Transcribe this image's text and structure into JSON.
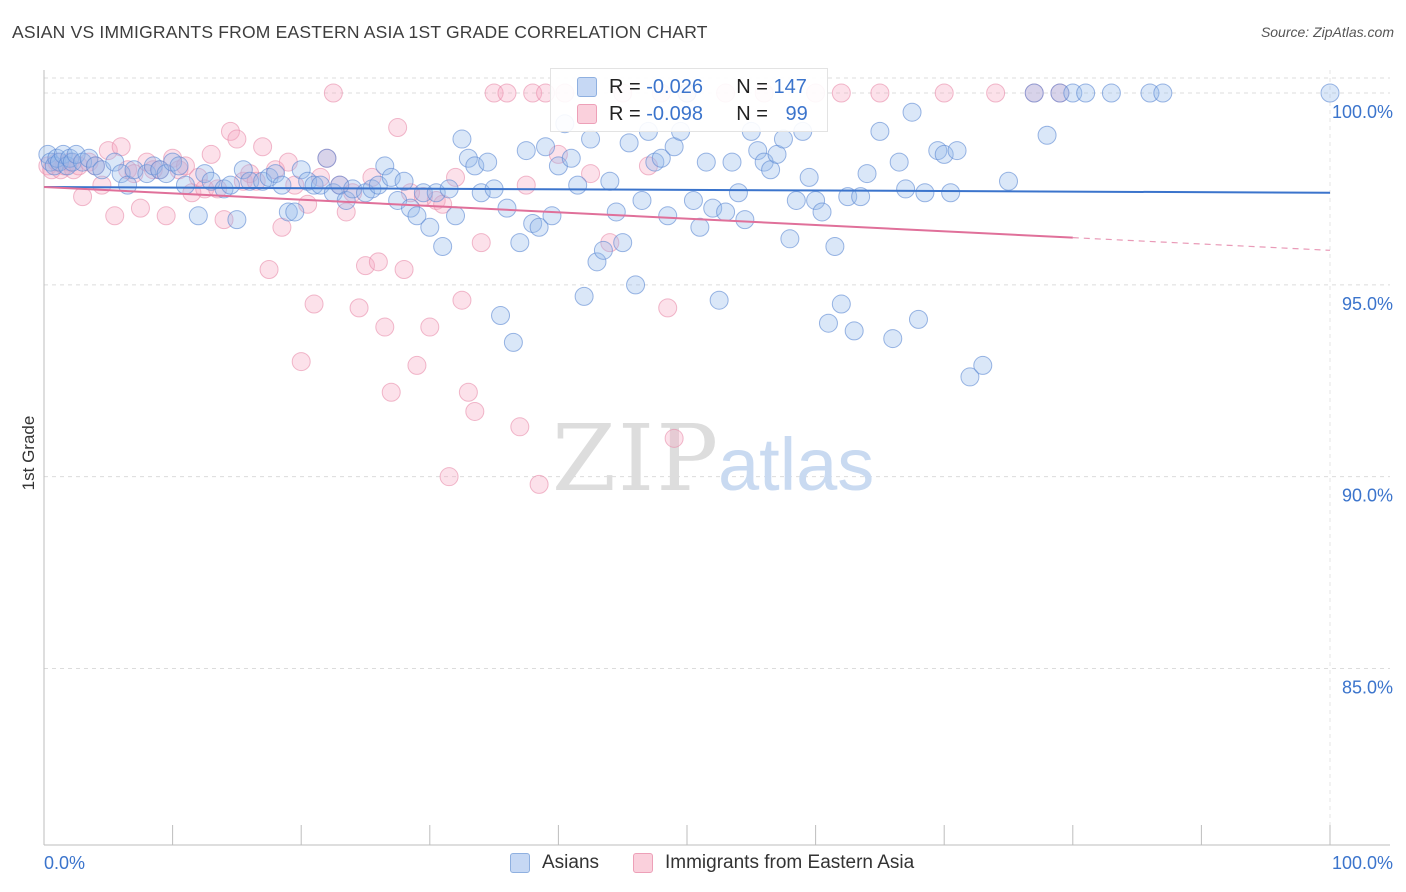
{
  "header": {
    "title": "ASIAN VS IMMIGRANTS FROM EASTERN ASIA 1ST GRADE CORRELATION CHART",
    "source": "Source: ZipAtlas.com"
  },
  "watermark": {
    "zip": "ZIP",
    "atlas": "atlas"
  },
  "legend": {
    "rows": [
      {
        "r_label": "R = ",
        "r_value": "-0.026",
        "n_label": "N = ",
        "n_value": "147",
        "color": "#a8c4ee"
      },
      {
        "r_label": "R = ",
        "r_value": "-0.098",
        "n_label": "N = ",
        "n_value": "99",
        "color": "#f5b8c9"
      }
    ]
  },
  "bottom_legend": [
    {
      "label": "Asians",
      "color": "#a8c4ee"
    },
    {
      "label": "Immigrants from Eastern Asia",
      "color": "#f5b8c9"
    }
  ],
  "chart_data": {
    "type": "scatter",
    "title": "ASIAN VS IMMIGRANTS FROM EASTERN ASIA 1ST GRADE CORRELATION CHART",
    "xlabel": "",
    "ylabel": "1st Grade",
    "xlim": [
      0,
      100
    ],
    "ylim": [
      80.4,
      100.6
    ],
    "x_tick_labels": [
      "0.0%",
      "100.0%"
    ],
    "y_ticks": [
      100,
      95,
      90,
      85
    ],
    "y_tick_labels": [
      "100.0%",
      "95.0%",
      "90.0%",
      "85.0%"
    ],
    "grid": true,
    "legend_position": "top-center",
    "colors": {
      "asians": "#3b74cc",
      "immigrants": "#e0709a"
    },
    "series": [
      {
        "name": "Asians",
        "r": -0.026,
        "n": 147,
        "trend": {
          "x": [
            0,
            100
          ],
          "y": [
            97.55,
            97.4
          ]
        },
        "points": [
          [
            0.3,
            98.4
          ],
          [
            0.5,
            98.2
          ],
          [
            0.8,
            98.1
          ],
          [
            1.0,
            98.3
          ],
          [
            1.2,
            98.2
          ],
          [
            1.5,
            98.4
          ],
          [
            1.8,
            98.1
          ],
          [
            2.0,
            98.3
          ],
          [
            2.2,
            98.2
          ],
          [
            2.5,
            98.4
          ],
          [
            3.0,
            98.2
          ],
          [
            3.5,
            98.3
          ],
          [
            4.0,
            98.1
          ],
          [
            4.5,
            98.0
          ],
          [
            5.5,
            98.2
          ],
          [
            6.0,
            97.9
          ],
          [
            6.5,
            97.6
          ],
          [
            7.0,
            98.0
          ],
          [
            8.0,
            97.9
          ],
          [
            8.5,
            98.1
          ],
          [
            9.0,
            98.0
          ],
          [
            9.5,
            97.9
          ],
          [
            10.0,
            98.2
          ],
          [
            10.5,
            98.1
          ],
          [
            11.0,
            97.6
          ],
          [
            12.0,
            96.8
          ],
          [
            12.5,
            97.9
          ],
          [
            13.0,
            97.7
          ],
          [
            14.0,
            97.5
          ],
          [
            14.5,
            97.6
          ],
          [
            15.0,
            96.7
          ],
          [
            15.5,
            98.0
          ],
          [
            16.0,
            97.7
          ],
          [
            17.0,
            97.7
          ],
          [
            17.5,
            97.8
          ],
          [
            18.0,
            97.9
          ],
          [
            18.5,
            97.6
          ],
          [
            19.0,
            96.9
          ],
          [
            19.5,
            96.9
          ],
          [
            20.0,
            98.0
          ],
          [
            20.5,
            97.7
          ],
          [
            21.0,
            97.6
          ],
          [
            21.5,
            97.6
          ],
          [
            22.0,
            98.3
          ],
          [
            22.5,
            97.4
          ],
          [
            23.0,
            97.6
          ],
          [
            23.5,
            97.2
          ],
          [
            24.0,
            97.5
          ],
          [
            25.0,
            97.4
          ],
          [
            25.5,
            97.5
          ],
          [
            26.0,
            97.6
          ],
          [
            26.5,
            98.1
          ],
          [
            27.0,
            97.8
          ],
          [
            27.5,
            97.2
          ],
          [
            28.0,
            97.7
          ],
          [
            28.5,
            97.0
          ],
          [
            29.0,
            96.8
          ],
          [
            29.5,
            97.4
          ],
          [
            30.0,
            96.5
          ],
          [
            30.5,
            97.4
          ],
          [
            31.0,
            96.0
          ],
          [
            31.5,
            97.5
          ],
          [
            32.0,
            96.8
          ],
          [
            32.5,
            98.8
          ],
          [
            33.0,
            98.3
          ],
          [
            33.5,
            98.1
          ],
          [
            34.0,
            97.4
          ],
          [
            34.5,
            98.2
          ],
          [
            35.0,
            97.5
          ],
          [
            35.5,
            94.2
          ],
          [
            36.0,
            97.0
          ],
          [
            36.5,
            93.5
          ],
          [
            37.0,
            96.1
          ],
          [
            37.5,
            98.5
          ],
          [
            38.0,
            96.6
          ],
          [
            38.5,
            96.5
          ],
          [
            39.0,
            98.6
          ],
          [
            39.5,
            96.8
          ],
          [
            40.0,
            98.1
          ],
          [
            40.5,
            99.2
          ],
          [
            41.0,
            98.3
          ],
          [
            41.5,
            97.6
          ],
          [
            42.0,
            94.7
          ],
          [
            42.5,
            98.8
          ],
          [
            43.0,
            95.6
          ],
          [
            43.5,
            95.9
          ],
          [
            44.0,
            97.7
          ],
          [
            44.5,
            96.9
          ],
          [
            45.0,
            96.1
          ],
          [
            45.5,
            98.7
          ],
          [
            46.0,
            95.0
          ],
          [
            46.5,
            97.2
          ],
          [
            47.0,
            99.0
          ],
          [
            47.5,
            98.2
          ],
          [
            48.0,
            98.3
          ],
          [
            48.5,
            96.8
          ],
          [
            49.0,
            98.6
          ],
          [
            49.5,
            99.0
          ],
          [
            50.0,
            100.0
          ],
          [
            50.5,
            97.2
          ],
          [
            51.0,
            96.5
          ],
          [
            51.5,
            98.2
          ],
          [
            52.0,
            97.0
          ],
          [
            52.5,
            94.6
          ],
          [
            53.0,
            96.9
          ],
          [
            53.5,
            98.2
          ],
          [
            54.0,
            97.4
          ],
          [
            54.5,
            96.7
          ],
          [
            55.0,
            99.0
          ],
          [
            55.5,
            98.5
          ],
          [
            56.0,
            98.2
          ],
          [
            56.5,
            98.0
          ],
          [
            57.0,
            98.4
          ],
          [
            57.5,
            98.8
          ],
          [
            58.0,
            96.2
          ],
          [
            58.5,
            97.2
          ],
          [
            59.0,
            99.0
          ],
          [
            59.5,
            97.8
          ],
          [
            60.0,
            97.2
          ],
          [
            60.5,
            96.9
          ],
          [
            61.0,
            94.0
          ],
          [
            61.5,
            96.0
          ],
          [
            62.0,
            94.5
          ],
          [
            62.5,
            97.3
          ],
          [
            63.0,
            93.8
          ],
          [
            63.5,
            97.3
          ],
          [
            64.0,
            97.9
          ],
          [
            65.0,
            99.0
          ],
          [
            66.0,
            93.6
          ],
          [
            66.5,
            98.2
          ],
          [
            67.0,
            97.5
          ],
          [
            67.5,
            99.5
          ],
          [
            68.0,
            94.1
          ],
          [
            68.5,
            97.4
          ],
          [
            69.5,
            98.5
          ],
          [
            70.0,
            98.4
          ],
          [
            70.5,
            97.4
          ],
          [
            71.0,
            98.5
          ],
          [
            72.0,
            92.6
          ],
          [
            73.0,
            92.9
          ],
          [
            75.0,
            97.7
          ],
          [
            77.0,
            100.0
          ],
          [
            78.0,
            98.9
          ],
          [
            79.0,
            100.0
          ],
          [
            80.0,
            100.0
          ],
          [
            81.0,
            100.0
          ],
          [
            83.0,
            100.0
          ],
          [
            86.0,
            100.0
          ],
          [
            87.0,
            100.0
          ],
          [
            100.0,
            100.0
          ]
        ]
      },
      {
        "name": "Immigrants from Eastern Asia",
        "r": -0.098,
        "n": 99,
        "trend": {
          "x": [
            0,
            100
          ],
          "y": [
            97.55,
            95.9
          ],
          "solid_until_x": 80
        },
        "points": [
          [
            0.3,
            98.1
          ],
          [
            0.6,
            98.0
          ],
          [
            1.0,
            98.2
          ],
          [
            1.3,
            98.0
          ],
          [
            1.6,
            98.1
          ],
          [
            2.0,
            98.2
          ],
          [
            2.3,
            98.0
          ],
          [
            2.7,
            98.1
          ],
          [
            3.0,
            97.3
          ],
          [
            3.5,
            98.2
          ],
          [
            4.0,
            98.1
          ],
          [
            4.5,
            97.6
          ],
          [
            5.0,
            98.5
          ],
          [
            5.5,
            96.8
          ],
          [
            6.0,
            98.6
          ],
          [
            6.5,
            98.0
          ],
          [
            7.0,
            97.9
          ],
          [
            7.5,
            97.0
          ],
          [
            8.0,
            98.2
          ],
          [
            8.5,
            98.0
          ],
          [
            9.0,
            98.0
          ],
          [
            9.5,
            96.8
          ],
          [
            10.0,
            98.3
          ],
          [
            10.5,
            98.0
          ],
          [
            11.0,
            98.1
          ],
          [
            11.5,
            97.4
          ],
          [
            12.0,
            97.8
          ],
          [
            12.5,
            97.5
          ],
          [
            13.0,
            98.4
          ],
          [
            13.5,
            97.5
          ],
          [
            14.0,
            96.7
          ],
          [
            14.5,
            99.0
          ],
          [
            15.0,
            98.8
          ],
          [
            15.5,
            97.7
          ],
          [
            16.0,
            97.9
          ],
          [
            16.5,
            97.7
          ],
          [
            17.0,
            98.6
          ],
          [
            17.5,
            95.4
          ],
          [
            18.0,
            98.0
          ],
          [
            18.5,
            96.5
          ],
          [
            19.0,
            98.2
          ],
          [
            19.5,
            97.6
          ],
          [
            20.0,
            93.0
          ],
          [
            20.5,
            97.1
          ],
          [
            21.0,
            94.5
          ],
          [
            21.5,
            97.8
          ],
          [
            22.0,
            98.3
          ],
          [
            22.5,
            100.0
          ],
          [
            23.0,
            97.6
          ],
          [
            23.5,
            96.9
          ],
          [
            24.0,
            97.4
          ],
          [
            24.5,
            94.4
          ],
          [
            25.0,
            95.5
          ],
          [
            25.5,
            97.8
          ],
          [
            26.0,
            95.6
          ],
          [
            26.5,
            93.9
          ],
          [
            27.0,
            92.2
          ],
          [
            27.5,
            99.1
          ],
          [
            28.0,
            95.4
          ],
          [
            28.5,
            97.4
          ],
          [
            29.0,
            92.9
          ],
          [
            29.5,
            97.3
          ],
          [
            30.0,
            93.9
          ],
          [
            30.5,
            97.2
          ],
          [
            31.0,
            97.1
          ],
          [
            31.5,
            90.0
          ],
          [
            32.0,
            97.8
          ],
          [
            32.5,
            94.6
          ],
          [
            33.0,
            92.2
          ],
          [
            33.5,
            91.7
          ],
          [
            34.0,
            96.1
          ],
          [
            35.0,
            100.0
          ],
          [
            36.0,
            100.0
          ],
          [
            37.0,
            91.3
          ],
          [
            37.5,
            97.6
          ],
          [
            38.0,
            100.0
          ],
          [
            38.5,
            89.8
          ],
          [
            39.0,
            100.0
          ],
          [
            40.0,
            98.4
          ],
          [
            40.5,
            100.0
          ],
          [
            42.5,
            97.9
          ],
          [
            44.0,
            96.1
          ],
          [
            45.0,
            100.0
          ],
          [
            47.0,
            98.1
          ],
          [
            48.0,
            100.0
          ],
          [
            48.5,
            94.4
          ],
          [
            49.0,
            91.0
          ],
          [
            50.0,
            100.0
          ],
          [
            53.0,
            100.0
          ],
          [
            56.0,
            100.0
          ],
          [
            60.0,
            100.0
          ],
          [
            62.0,
            100.0
          ],
          [
            65.0,
            100.0
          ],
          [
            70.0,
            100.0
          ],
          [
            74.0,
            100.0
          ],
          [
            77.0,
            100.0
          ],
          [
            79.0,
            100.0
          ]
        ]
      }
    ]
  }
}
